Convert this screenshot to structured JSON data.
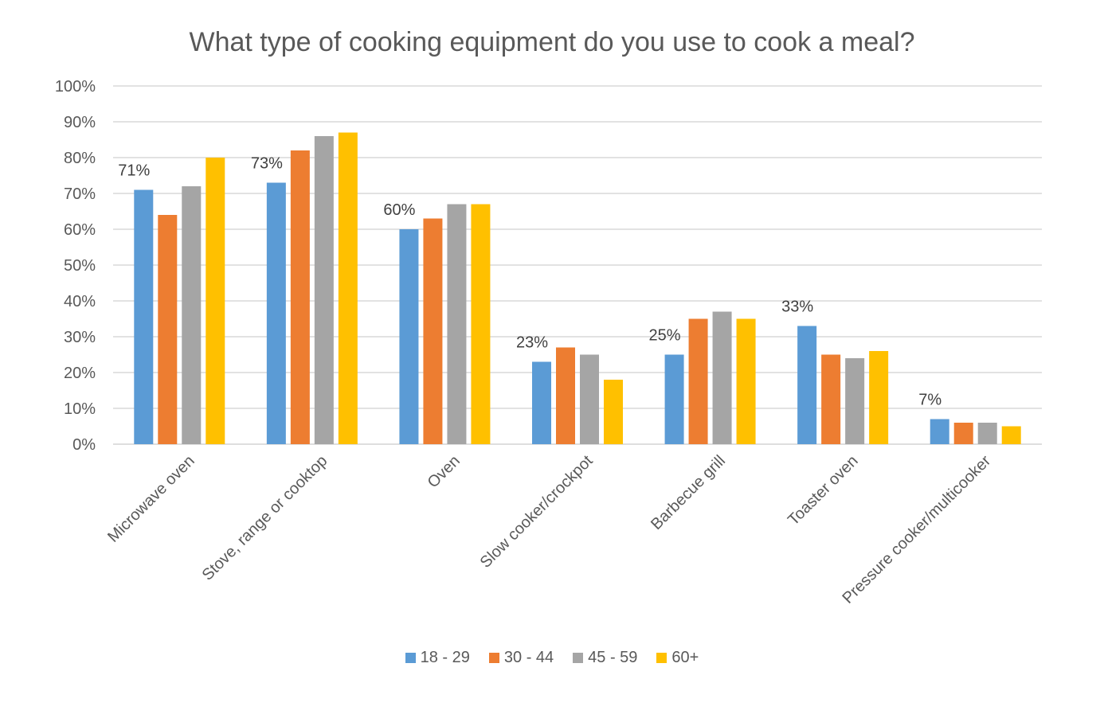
{
  "chart_data": {
    "type": "bar",
    "title": "What type of cooking equipment do you use to cook a meal?",
    "xlabel": "",
    "ylabel": "",
    "ylim": [
      0,
      100
    ],
    "yticks": [
      "0%",
      "10%",
      "20%",
      "30%",
      "40%",
      "50%",
      "60%",
      "70%",
      "80%",
      "90%",
      "100%"
    ],
    "grid": true,
    "legend_position": "bottom",
    "categories": [
      "Microwave oven",
      "Stove, range or cooktop",
      "Oven",
      "Slow cooker/crockpot",
      "Barbecue grill",
      "Toaster oven",
      "Pressure cooker/multicooker"
    ],
    "series": [
      {
        "name": "18 - 29",
        "color": "#5B9BD5",
        "values": [
          71,
          73,
          60,
          23,
          25,
          33,
          7
        ]
      },
      {
        "name": "30 - 44",
        "color": "#ED7D31",
        "values": [
          64,
          82,
          63,
          27,
          35,
          25,
          6
        ]
      },
      {
        "name": "45 - 59",
        "color": "#A5A5A5",
        "values": [
          72,
          86,
          67,
          25,
          37,
          24,
          6
        ]
      },
      {
        "name": "60+",
        "color": "#FFC000",
        "values": [
          80,
          87,
          67,
          18,
          35,
          26,
          5
        ]
      }
    ],
    "data_labels": [
      "71%",
      "73%",
      "60%",
      "23%",
      "25%",
      "33%",
      "7%"
    ]
  }
}
